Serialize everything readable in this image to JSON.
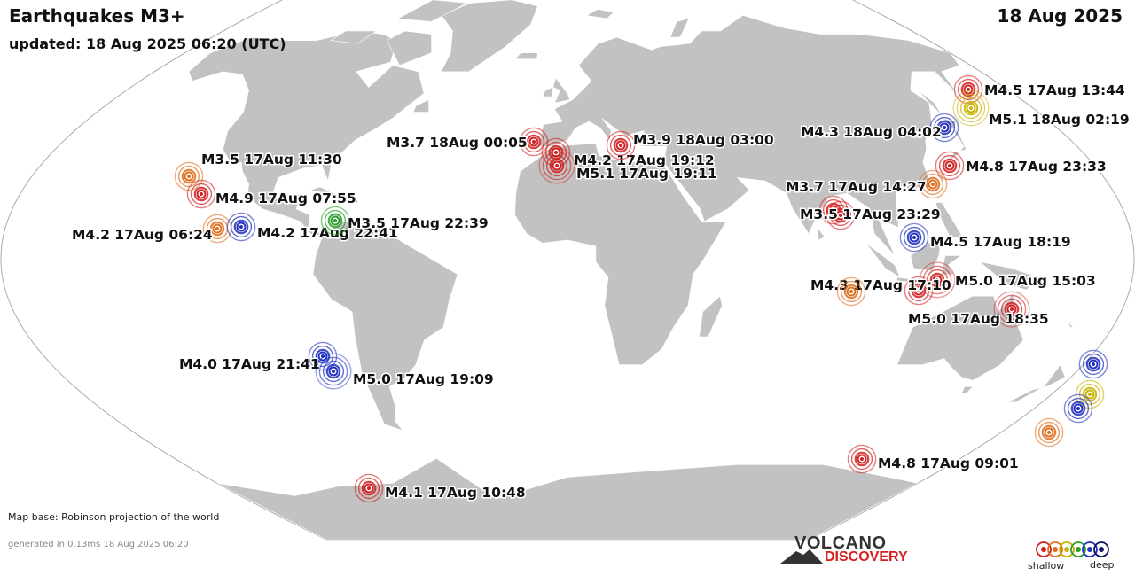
{
  "header": {
    "title": "Earthquakes M3+",
    "date": "18 Aug 2025",
    "updated": "updated: 18 Aug 2025 06:20 (UTC)"
  },
  "footer": {
    "map_base": "Map base: Robinson projection of the world",
    "generated": "generated in 0.13ms 18 Aug 2025 06:20"
  },
  "logo": {
    "line1": "VOLCANO",
    "line2": "DISCOVERY"
  },
  "legend": {
    "shallow": "shallow",
    "deep": "deep",
    "depth_colors": [
      "#d42020",
      "#e07020",
      "#c8b400",
      "#2aa02a",
      "#2030c0",
      "#101060"
    ]
  },
  "colors": {
    "ocean": "#ffffff",
    "land": "#c2c2c2",
    "border": "#ffffff",
    "outline": "#aaaaaa"
  },
  "quakes": [
    {
      "label": "M4.5 17Aug 13:44",
      "lon": 142.5,
      "lat": 42.5,
      "color": "#d42020"
    },
    {
      "label": "M5.1 18Aug 02:19",
      "lon": 144.0,
      "lat": 38.5,
      "color": "#c8b400"
    },
    {
      "label": "M4.3 18Aug 04:02",
      "lon": 135.5,
      "lat": 36.0,
      "color": "#2030c0"
    },
    {
      "label": "M4.8 17Aug 23:33",
      "lon": 141.5,
      "lat": 30.5,
      "color": "#d42020"
    },
    {
      "label": "",
      "lon": 139.0,
      "lat": 26.5,
      "color": "#e07020"
    },
    {
      "label": "M3.7 18Aug 00:05",
      "lon": 14.5,
      "lat": 38.5,
      "color": "#d42020"
    },
    {
      "label": "M4.2 17Aug 19:12",
      "lon": 20.0,
      "lat": 37.0,
      "color": "#d42020"
    },
    {
      "label": "M5.1 17Aug 19:11",
      "lon": 21.0,
      "lat": 34.5,
      "color": "#d42020"
    },
    {
      "label": "M3.9 18Aug 03:00",
      "lon": 29.0,
      "lat": 37.5,
      "color": "#d42020"
    },
    {
      "label": "M3.7 17Aug 14:27",
      "lon": 95.5,
      "lat": 22.0,
      "color": "#d42020"
    },
    {
      "label": "M3.5 17Aug 23:29",
      "lon": 97.0,
      "lat": 19.0,
      "color": ""
    },
    {
      "label": "M4.5 17Aug 18:19",
      "lon": 126.0,
      "lat": 14.0,
      "color": "#2030c0"
    },
    {
      "label": "M5.0 17Aug 15:03",
      "lon": 127.0,
      "lat": 2.5,
      "color": "#d42020"
    },
    {
      "label": "M4.3 17Aug 17:10",
      "lon": 124.0,
      "lat": 0.0,
      "color": "#d42020"
    },
    {
      "label": "",
      "lon": 108.0,
      "lat": -0.5,
      "color": "#e07020"
    },
    {
      "label": "M5.0 17Aug 18:35",
      "lon": 134.5,
      "lat": -3.5,
      "color": "#d42020"
    },
    {
      "label": "",
      "lon": 170.0,
      "lat": -15.5,
      "color": "#2030c0"
    },
    {
      "label": "",
      "lon": 170.5,
      "lat": -20.0,
      "color": "#c8b400"
    },
    {
      "label": "",
      "lon": 168.5,
      "lat": -22.5,
      "color": "#2030c0"
    },
    {
      "label": "",
      "lon": 166.0,
      "lat": -30.0,
      "color": "#e07020"
    },
    {
      "label": "M4.8 17Aug 09:01",
      "lon": 146.5,
      "lat": -38.0,
      "color": "#d42020"
    },
    {
      "label": "M3.5 17Aug 11:30",
      "lon": -117.5,
      "lat": 33.0,
      "color": "#e07020"
    },
    {
      "label": "M4.9 17Aug 07:55",
      "lon": -111.5,
      "lat": 28.0,
      "color": "#d42020"
    },
    {
      "label": "M4.2 17Aug 06:24",
      "lon": -101.5,
      "lat": 18.5,
      "color": "#e07020"
    },
    {
      "label": "M4.2 17Aug 22:41",
      "lon": -96.0,
      "lat": 18.0,
      "color": "#2030c0"
    },
    {
      "label": "M3.5 17Aug 22:39",
      "lon": -66.5,
      "lat": 19.5,
      "color": "#2aa02a"
    },
    {
      "label": "M4.0 17Aug 21:41",
      "lon": -66.5,
      "lat": -22.5,
      "color": "#2030c0"
    },
    {
      "label": "M5.0 17Aug 19:09",
      "lon": -65.0,
      "lat": -25.0,
      "color": "#2030c0"
    },
    {
      "label": "M4.1 17Aug 10:48",
      "lon": -68.0,
      "lat": -54.0,
      "color": "#d42020"
    }
  ]
}
